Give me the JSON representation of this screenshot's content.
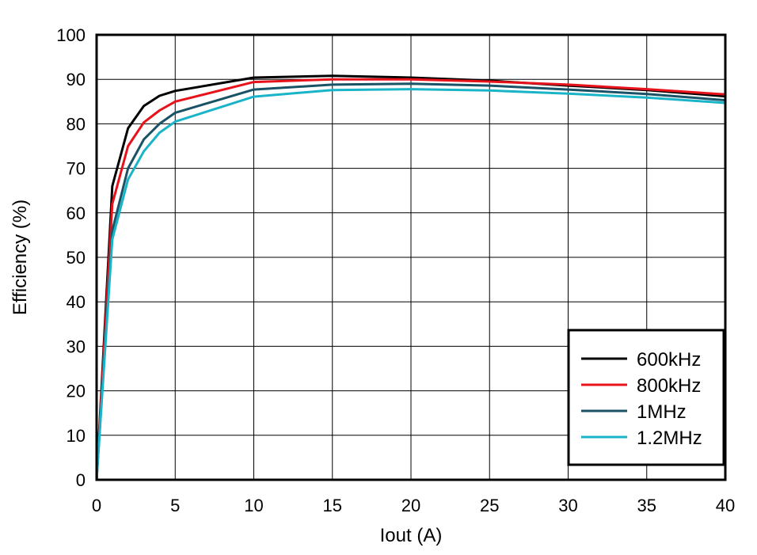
{
  "chart_data": {
    "type": "line",
    "title": "",
    "xlabel": "Iout (A)",
    "ylabel": "Efficiency (%)",
    "xlim": [
      0,
      40
    ],
    "ylim": [
      0,
      100
    ],
    "xticks": [
      0,
      5,
      10,
      15,
      20,
      25,
      30,
      35,
      40
    ],
    "yticks": [
      0,
      10,
      20,
      30,
      40,
      50,
      60,
      70,
      80,
      90,
      100
    ],
    "grid": true,
    "legend_position": "bottom-right",
    "series": [
      {
        "name": "600kHz",
        "color": "#000000",
        "x": [
          0,
          1,
          2,
          3,
          4,
          5,
          10,
          15,
          20,
          25,
          30,
          35,
          40
        ],
        "y": [
          0,
          66,
          79,
          84,
          86.3,
          87.4,
          90.4,
          90.8,
          90.4,
          89.7,
          88.6,
          87.6,
          86.2
        ]
      },
      {
        "name": "800kHz",
        "color": "#e8121b",
        "x": [
          0,
          1,
          2,
          3,
          4,
          5,
          10,
          15,
          20,
          25,
          30,
          35,
          40
        ],
        "y": [
          0,
          62,
          75,
          80.3,
          83,
          85,
          89.4,
          90,
          90,
          89.5,
          88.8,
          87.8,
          86.6
        ]
      },
      {
        "name": "1MHz",
        "color": "#1a5266",
        "x": [
          0,
          1,
          2,
          3,
          4,
          5,
          10,
          15,
          20,
          25,
          30,
          35,
          40
        ],
        "y": [
          0,
          56,
          70,
          76.5,
          80,
          82.5,
          87.7,
          88.8,
          89,
          88.6,
          87.7,
          86.7,
          85.3
        ]
      },
      {
        "name": "1.2MHz",
        "color": "#1ab4c8",
        "x": [
          0,
          1,
          2,
          3,
          4,
          5,
          10,
          15,
          20,
          25,
          30,
          35,
          40
        ],
        "y": [
          0,
          54,
          67.5,
          73.8,
          78,
          80.5,
          86.1,
          87.6,
          87.8,
          87.5,
          86.8,
          85.9,
          84.7
        ]
      }
    ]
  }
}
